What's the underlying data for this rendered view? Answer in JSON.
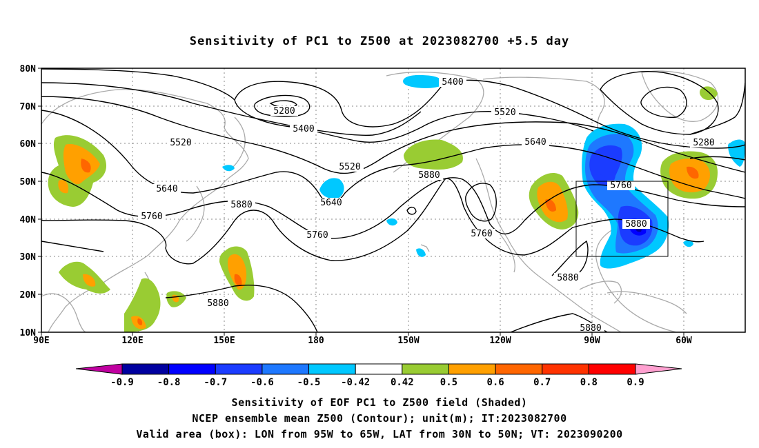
{
  "title": "Sensitivity of PC1 to Z500 at 2023082700 +5.5 day",
  "map": {
    "lat_labels": [
      "80N",
      "70N",
      "60N",
      "50N",
      "40N",
      "30N",
      "20N",
      "10N"
    ],
    "lon_labels": [
      "90E",
      "120E",
      "150E",
      "180",
      "150W",
      "120W",
      "90W",
      "60W"
    ],
    "contour_labels": [
      {
        "text": "5280"
      },
      {
        "text": "5400"
      },
      {
        "text": "5400"
      },
      {
        "text": "5520"
      },
      {
        "text": "5520"
      },
      {
        "text": "5520"
      },
      {
        "text": "5640"
      },
      {
        "text": "5640"
      },
      {
        "text": "5640"
      },
      {
        "text": "5760"
      },
      {
        "text": "5760"
      },
      {
        "text": "5760"
      },
      {
        "text": "5760"
      },
      {
        "text": "5880"
      },
      {
        "text": "5880"
      },
      {
        "text": "5880"
      },
      {
        "text": "5880"
      },
      {
        "text": "5880"
      },
      {
        "text": "5880"
      },
      {
        "text": "5280"
      }
    ]
  },
  "colorbar": {
    "labels": [
      "-0.9",
      "-0.8",
      "-0.7",
      "-0.6",
      "-0.5",
      "-0.42",
      "0.42",
      "0.5",
      "0.6",
      "0.7",
      "0.8",
      "0.9"
    ],
    "colors": [
      "#0000a0",
      "#0000ff",
      "#1b3cff",
      "#1e78ff",
      "#00c8ff",
      "#ffffff",
      "#99cc33",
      "#ffa000",
      "#ff6600",
      "#ff3300",
      "#ff0000"
    ],
    "low_arrow_color": "#c000a0",
    "high_arrow_color": "#ffa0d0"
  },
  "captions": {
    "line1": "Sensitivity of EOF PC1 to Z500 field (Shaded)",
    "line2": "NCEP ensemble mean Z500 (Contour); unit(m); IT:2023082700",
    "line3": "Valid area (box): LON from 95W to 65W, LAT from 30N to 50N; VT: 2023090200"
  }
}
